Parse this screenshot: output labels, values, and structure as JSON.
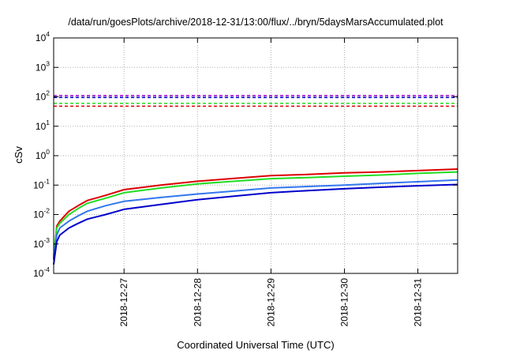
{
  "chart_data": {
    "type": "line",
    "title": "/data/run/goesPlots/archive/2018-12-31/13:00/flux/../bryn/5daysMarsAccumulated.plot",
    "xlabel": "Coordinated Universal Time (UTC)",
    "ylabel": "cSv",
    "yscale": "log",
    "ylim": [
      0.0001,
      10000
    ],
    "xlim": [
      "2018-12-26T01:00",
      "2018-12-31T13:00"
    ],
    "y_ticks": [
      {
        "value": 0.0001,
        "base": "10",
        "exp": "-4"
      },
      {
        "value": 0.001,
        "base": "10",
        "exp": "-3"
      },
      {
        "value": 0.01,
        "base": "10",
        "exp": "-2"
      },
      {
        "value": 0.1,
        "base": "10",
        "exp": "-1"
      },
      {
        "value": 1,
        "base": "10",
        "exp": "0"
      },
      {
        "value": 10,
        "base": "10",
        "exp": "1"
      },
      {
        "value": 100,
        "base": "10",
        "exp": "2"
      },
      {
        "value": 1000,
        "base": "10",
        "exp": "3"
      },
      {
        "value": 10000,
        "base": "10",
        "exp": "4"
      }
    ],
    "x_ticks": [
      {
        "value": "2018-12-27T00:00",
        "label": "2018-12-27"
      },
      {
        "value": "2018-12-28T00:00",
        "label": "2018-12-28"
      },
      {
        "value": "2018-12-29T00:00",
        "label": "2018-12-29"
      },
      {
        "value": "2018-12-30T00:00",
        "label": "2018-12-30"
      },
      {
        "value": "2018-12-31T00:00",
        "label": "2018-12-31"
      }
    ],
    "grid": true,
    "series": [
      {
        "color": "#dd0000",
        "width": 2,
        "points": [
          [
            "2018-12-26T01:00",
            0.0003
          ],
          [
            "2018-12-26T02:00",
            0.004
          ],
          [
            "2018-12-26T03:00",
            0.006
          ],
          [
            "2018-12-26T06:00",
            0.013
          ],
          [
            "2018-12-26T09:00",
            0.02
          ],
          [
            "2018-12-26T12:00",
            0.03
          ],
          [
            "2018-12-26T18:00",
            0.045
          ],
          [
            "2018-12-27T00:00",
            0.07
          ],
          [
            "2018-12-27T12:00",
            0.1
          ],
          [
            "2018-12-28T00:00",
            0.135
          ],
          [
            "2018-12-28T12:00",
            0.17
          ],
          [
            "2018-12-29T00:00",
            0.21
          ],
          [
            "2018-12-29T12:00",
            0.23
          ],
          [
            "2018-12-30T00:00",
            0.26
          ],
          [
            "2018-12-30T12:00",
            0.28
          ],
          [
            "2018-12-31T00:00",
            0.31
          ],
          [
            "2018-12-31T13:00",
            0.35
          ]
        ]
      },
      {
        "color": "#22dd22",
        "width": 2,
        "points": [
          [
            "2018-12-26T01:00",
            0.0004
          ],
          [
            "2018-12-26T02:00",
            0.0035
          ],
          [
            "2018-12-26T03:00",
            0.005
          ],
          [
            "2018-12-26T06:00",
            0.01
          ],
          [
            "2018-12-26T09:00",
            0.016
          ],
          [
            "2018-12-26T12:00",
            0.024
          ],
          [
            "2018-12-26T18:00",
            0.036
          ],
          [
            "2018-12-27T00:00",
            0.055
          ],
          [
            "2018-12-27T12:00",
            0.08
          ],
          [
            "2018-12-28T00:00",
            0.11
          ],
          [
            "2018-12-28T12:00",
            0.135
          ],
          [
            "2018-12-29T00:00",
            0.165
          ],
          [
            "2018-12-29T12:00",
            0.18
          ],
          [
            "2018-12-30T00:00",
            0.2
          ],
          [
            "2018-12-30T12:00",
            0.22
          ],
          [
            "2018-12-31T00:00",
            0.25
          ],
          [
            "2018-12-31T13:00",
            0.28
          ]
        ]
      },
      {
        "color": "#3377ee",
        "width": 2,
        "points": [
          [
            "2018-12-26T01:00",
            0.0003
          ],
          [
            "2018-12-26T02:00",
            0.002
          ],
          [
            "2018-12-26T03:00",
            0.0035
          ],
          [
            "2018-12-26T06:00",
            0.006
          ],
          [
            "2018-12-26T09:00",
            0.009
          ],
          [
            "2018-12-26T12:00",
            0.013
          ],
          [
            "2018-12-26T18:00",
            0.02
          ],
          [
            "2018-12-27T00:00",
            0.028
          ],
          [
            "2018-12-27T12:00",
            0.038
          ],
          [
            "2018-12-28T00:00",
            0.05
          ],
          [
            "2018-12-28T12:00",
            0.063
          ],
          [
            "2018-12-29T00:00",
            0.08
          ],
          [
            "2018-12-29T12:00",
            0.09
          ],
          [
            "2018-12-30T00:00",
            0.1
          ],
          [
            "2018-12-30T12:00",
            0.115
          ],
          [
            "2018-12-31T00:00",
            0.13
          ],
          [
            "2018-12-31T13:00",
            0.15
          ]
        ]
      },
      {
        "color": "#0000cc",
        "width": 2,
        "points": [
          [
            "2018-12-26T01:00",
            0.0002
          ],
          [
            "2018-12-26T02:00",
            0.0012
          ],
          [
            "2018-12-26T03:00",
            0.002
          ],
          [
            "2018-12-26T06:00",
            0.0035
          ],
          [
            "2018-12-26T09:00",
            0.005
          ],
          [
            "2018-12-26T12:00",
            0.007
          ],
          [
            "2018-12-26T18:00",
            0.01
          ],
          [
            "2018-12-27T00:00",
            0.015
          ],
          [
            "2018-12-27T12:00",
            0.022
          ],
          [
            "2018-12-28T00:00",
            0.032
          ],
          [
            "2018-12-28T12:00",
            0.042
          ],
          [
            "2018-12-29T00:00",
            0.055
          ],
          [
            "2018-12-29T12:00",
            0.065
          ],
          [
            "2018-12-30T00:00",
            0.075
          ],
          [
            "2018-12-30T12:00",
            0.085
          ],
          [
            "2018-12-31T00:00",
            0.095
          ],
          [
            "2018-12-31T13:00",
            0.105
          ]
        ]
      }
    ],
    "reference_lines": [
      {
        "value": 110,
        "color": "#9900cc",
        "style": "dashed"
      },
      {
        "value": 95,
        "color": "#0000cc",
        "style": "dashed"
      },
      {
        "value": 60,
        "color": "#22dd22",
        "style": "dashed"
      },
      {
        "value": 48,
        "color": "#dd0000",
        "style": "dashed"
      }
    ]
  }
}
